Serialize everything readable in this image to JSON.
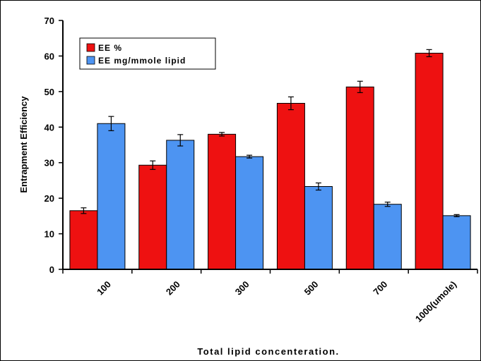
{
  "chart_data": {
    "type": "bar",
    "title": "",
    "xlabel": "Total lipid concenteration.",
    "ylabel": "Entrapment Efficiency",
    "categories": [
      "100",
      "200",
      "300",
      "500",
      "700",
      "1000(umole)"
    ],
    "ylim": [
      0,
      70
    ],
    "yticks": [
      0,
      10,
      20,
      30,
      40,
      50,
      60,
      70
    ],
    "grid": false,
    "legend_position": "top-left",
    "series": [
      {
        "name": "EE %",
        "color": "#ee1111",
        "values": [
          16.5,
          29.3,
          38.0,
          46.7,
          51.3,
          60.8
        ],
        "errors": [
          0.8,
          1.2,
          0.5,
          1.8,
          1.6,
          1.0
        ]
      },
      {
        "name": "EE mg/mmole lipid",
        "color": "#4d94f2",
        "values": [
          41.0,
          36.3,
          31.7,
          23.3,
          18.3,
          15.1
        ],
        "errors": [
          2.0,
          1.6,
          0.4,
          1.0,
          0.6,
          0.3
        ]
      }
    ]
  }
}
